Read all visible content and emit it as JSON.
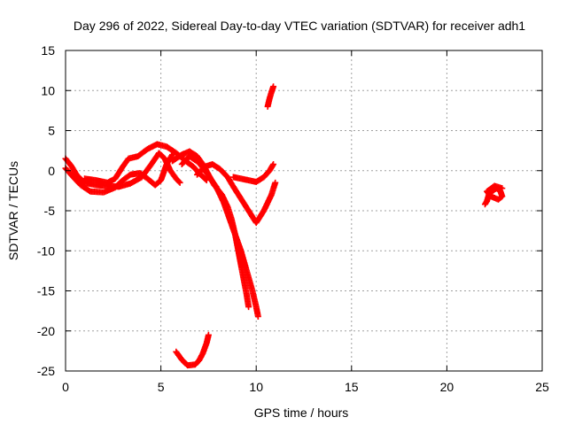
{
  "chart_data": {
    "type": "scatter",
    "title": "Day 296 of 2022, Sidereal Day-to-day VTEC variation (SDTVAR) for receiver adh1",
    "xlabel": "GPS time / hours",
    "ylabel": "SDTVAR / TECUs",
    "xlim": [
      0,
      25
    ],
    "ylim": [
      -25,
      15
    ],
    "xticks": [
      0,
      5,
      10,
      15,
      20,
      25
    ],
    "yticks": [
      -25,
      -20,
      -15,
      -10,
      -5,
      0,
      5,
      10,
      15
    ],
    "grid": true,
    "marker": "plus",
    "color": "#ff0000",
    "series": [
      {
        "points": [
          [
            0,
            1.5
          ],
          [
            0.3,
            0.6
          ],
          [
            0.6,
            -0.6
          ],
          [
            1.0,
            -1.5
          ],
          [
            1.6,
            -1.8
          ],
          [
            2.2,
            -1.9
          ],
          [
            2.8,
            -2.0
          ],
          [
            3.4,
            -1.6
          ],
          [
            4.0,
            -0.8
          ],
          [
            4.5,
            0.8
          ],
          [
            4.9,
            2.2
          ],
          [
            5.2,
            1.5
          ],
          [
            5.5,
            0.0
          ],
          [
            5.8,
            -1.0
          ],
          [
            6.0,
            -1.5
          ]
        ]
      },
      {
        "points": [
          [
            0,
            0.3
          ],
          [
            0.4,
            -0.8
          ],
          [
            0.8,
            -1.8
          ],
          [
            1.3,
            -2.6
          ],
          [
            2.0,
            -2.7
          ],
          [
            2.6,
            -2.1
          ],
          [
            3.0,
            -1.2
          ],
          [
            3.4,
            -0.5
          ],
          [
            3.9,
            -0.3
          ],
          [
            4.3,
            -1.0
          ],
          [
            4.7,
            -1.8
          ],
          [
            5.0,
            -1.2
          ],
          [
            5.3,
            0.8
          ],
          [
            5.6,
            2.0
          ]
        ]
      },
      {
        "points": [
          [
            1.0,
            -1.0
          ],
          [
            1.6,
            -1.2
          ],
          [
            2.2,
            -1.5
          ],
          [
            2.6,
            -1.0
          ],
          [
            3.0,
            0.5
          ],
          [
            3.3,
            1.5
          ],
          [
            3.8,
            1.8
          ],
          [
            4.3,
            2.7
          ],
          [
            4.8,
            3.3
          ],
          [
            5.3,
            3.0
          ],
          [
            5.8,
            2.2
          ],
          [
            6.3,
            1.2
          ],
          [
            6.7,
            0.5
          ],
          [
            7.0,
            -0.3
          ],
          [
            7.4,
            -1.2
          ]
        ]
      },
      {
        "points": [
          [
            5.6,
            1.2
          ],
          [
            6.1,
            2.0
          ],
          [
            6.5,
            2.4
          ],
          [
            6.9,
            1.8
          ],
          [
            7.2,
            0.8
          ],
          [
            7.5,
            -0.5
          ],
          [
            7.8,
            -1.8
          ],
          [
            8.2,
            -3.0
          ],
          [
            8.5,
            -4.5
          ],
          [
            8.7,
            -6.0
          ],
          [
            8.9,
            -8.0
          ],
          [
            9.1,
            -10.5
          ],
          [
            9.3,
            -13.0
          ],
          [
            9.5,
            -15.5
          ],
          [
            9.6,
            -17.0
          ]
        ]
      },
      {
        "points": [
          [
            6.1,
            0.8
          ],
          [
            6.5,
            1.8
          ],
          [
            7.0,
            1.0
          ],
          [
            7.4,
            -0.3
          ],
          [
            7.9,
            -2.0
          ],
          [
            8.3,
            -4.0
          ],
          [
            8.6,
            -6.0
          ],
          [
            8.9,
            -8.0
          ],
          [
            9.2,
            -10.0
          ],
          [
            9.5,
            -12.5
          ],
          [
            9.8,
            -15.0
          ],
          [
            10.0,
            -17.0
          ],
          [
            10.1,
            -18.2
          ]
        ]
      },
      {
        "points": [
          [
            6.9,
            -0.5
          ],
          [
            7.3,
            0.5
          ],
          [
            7.7,
            0.8
          ],
          [
            8.1,
            0.2
          ],
          [
            8.5,
            -0.8
          ],
          [
            8.8,
            -2.0
          ],
          [
            9.2,
            -3.5
          ],
          [
            9.6,
            -5.0
          ],
          [
            10.0,
            -6.5
          ],
          [
            10.4,
            -5.0
          ],
          [
            10.8,
            -3.0
          ],
          [
            11.0,
            -1.5
          ]
        ]
      },
      {
        "points": [
          [
            8.8,
            -0.8
          ],
          [
            9.2,
            -1.0
          ],
          [
            9.6,
            -1.2
          ],
          [
            10.0,
            -1.4
          ],
          [
            10.4,
            -0.8
          ],
          [
            10.7,
            0.0
          ],
          [
            10.9,
            0.8
          ]
        ]
      },
      {
        "points": [
          [
            10.6,
            8.0
          ],
          [
            10.7,
            9.0
          ],
          [
            10.8,
            9.8
          ],
          [
            10.9,
            10.5
          ]
        ]
      },
      {
        "points": [
          [
            5.8,
            -22.6
          ],
          [
            6.1,
            -23.6
          ],
          [
            6.4,
            -24.3
          ],
          [
            6.8,
            -24.2
          ],
          [
            7.0,
            -23.7
          ],
          [
            7.2,
            -22.8
          ],
          [
            7.4,
            -21.5
          ],
          [
            7.5,
            -20.5
          ]
        ]
      },
      {
        "points": [
          [
            22.0,
            -4.2
          ],
          [
            22.1,
            -3.8
          ],
          [
            22.2,
            -3.0
          ],
          [
            22.4,
            -2.5
          ],
          [
            22.6,
            -2.2
          ],
          [
            22.8,
            -2.5
          ],
          [
            22.9,
            -3.2
          ],
          [
            22.7,
            -3.6
          ],
          [
            22.3,
            -3.2
          ],
          [
            22.1,
            -2.6
          ],
          [
            22.5,
            -1.9
          ],
          [
            22.9,
            -2.2
          ]
        ]
      }
    ]
  }
}
